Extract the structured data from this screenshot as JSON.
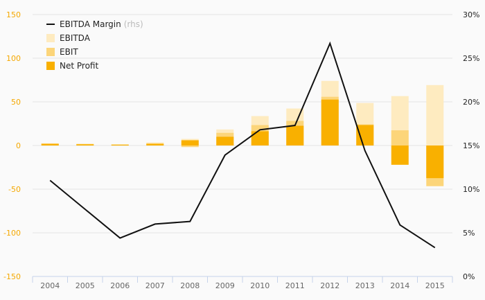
{
  "chart_data": {
    "type": "bar",
    "categories": [
      "2004",
      "2005",
      "2006",
      "2007",
      "2008",
      "2009",
      "2010",
      "2011",
      "2012",
      "2013",
      "2014",
      "2015"
    ],
    "series": [
      {
        "name": "EBITDA",
        "kind": "bar",
        "axis": "left",
        "color": "#feebc0",
        "values": [
          2.6,
          1.8,
          1.0,
          3.4,
          7.6,
          18.4,
          33.7,
          42.4,
          74,
          48.7,
          56.6,
          69.2
        ]
      },
      {
        "name": "EBIT",
        "kind": "bar",
        "axis": "left",
        "color": "#fcd57a",
        "values": [
          2.3,
          1.8,
          1.0,
          2.6,
          -1.8,
          14.5,
          23.4,
          28.2,
          55.8,
          24.2,
          17.4,
          -46.6
        ]
      },
      {
        "name": "Net Profit",
        "kind": "bar",
        "axis": "left",
        "color": "#f9b000",
        "values": [
          1.8,
          1.3,
          1.0,
          1.8,
          6.0,
          10,
          16.3,
          22.6,
          52.6,
          23.4,
          -22.1,
          -37.4
        ]
      },
      {
        "name": "EBITDA Margin",
        "suffix": "(rhs)",
        "kind": "line",
        "axis": "right",
        "color": "#111111",
        "values": [
          11.0,
          7.7,
          4.4,
          6.0,
          6.3,
          13.9,
          16.8,
          17.3,
          26.7,
          14.4,
          5.9,
          3.3
        ]
      }
    ],
    "yleft": {
      "range": [
        -150,
        150
      ],
      "ticks": [
        "150",
        "100",
        "50",
        "0",
        "-50",
        "-100",
        "-150"
      ],
      "tick_values": [
        150,
        100,
        50,
        0,
        -50,
        -100,
        -150
      ]
    },
    "yright": {
      "range": [
        0,
        30
      ],
      "ticks": [
        "30%",
        "25%",
        "20%",
        "15%",
        "10%",
        "5%",
        "0%"
      ],
      "tick_values": [
        30,
        25,
        20,
        15,
        10,
        5,
        0
      ]
    },
    "legend_position": "top-left",
    "grid": true
  }
}
